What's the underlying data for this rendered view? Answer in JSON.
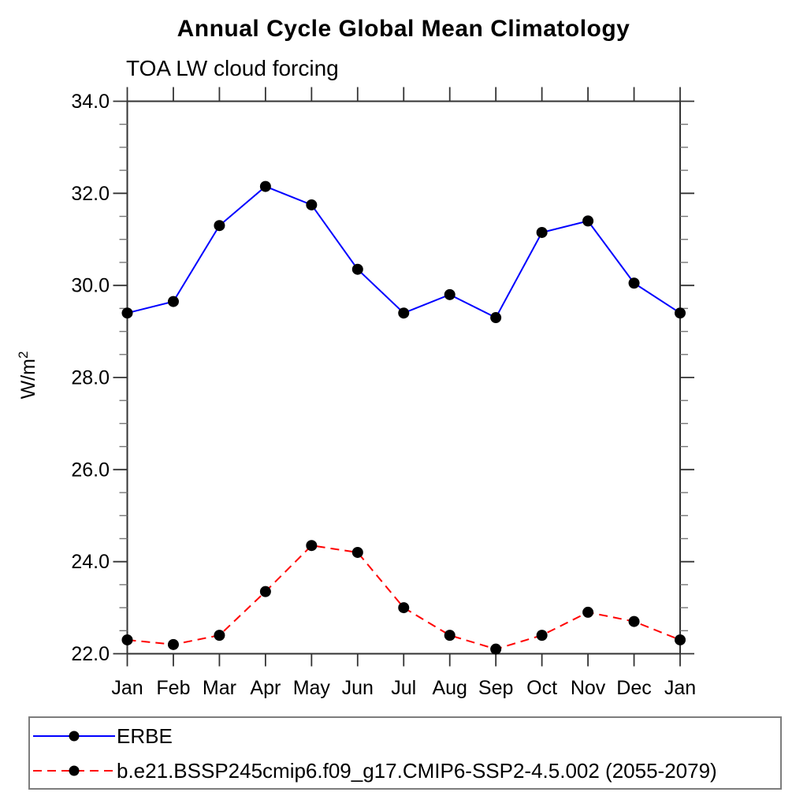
{
  "header": {
    "title": "Annual Cycle Global Mean Climatology",
    "subtitle": "TOA LW cloud forcing"
  },
  "chart_data": {
    "type": "line",
    "title": "Annual Cycle Global Mean Climatology",
    "subtitle": "TOA LW cloud forcing",
    "ylabel": "W/m",
    "ylabel_superscript": "2",
    "xlabel": "",
    "categories": [
      "Jan",
      "Feb",
      "Mar",
      "Apr",
      "May",
      "Jun",
      "Jul",
      "Aug",
      "Sep",
      "Oct",
      "Nov",
      "Dec",
      "Jan"
    ],
    "series": [
      {
        "name": "ERBE",
        "color": "#0000ff",
        "line_style": "solid",
        "marker": "filled-circle",
        "marker_color": "#000000",
        "values": [
          29.4,
          29.65,
          31.3,
          32.15,
          31.75,
          30.35,
          29.4,
          29.8,
          29.3,
          31.15,
          31.4,
          30.05,
          29.4
        ]
      },
      {
        "name": "b.e21.BSSP245cmip6.f09_g17.CMIP6-SSP2-4.5.002 (2055-2079)",
        "color": "#ff0000",
        "line_style": "dashed",
        "marker": "filled-circle",
        "marker_color": "#000000",
        "values": [
          22.3,
          22.2,
          22.4,
          23.35,
          24.35,
          24.2,
          23.0,
          22.4,
          22.1,
          22.4,
          22.9,
          22.7,
          22.3
        ]
      }
    ],
    "ylim": [
      22,
      34
    ],
    "ytick_step": 2,
    "yminor_step": 0.5,
    "ytick_labels": [
      "22.0",
      "24.0",
      "26.0",
      "28.0",
      "30.0",
      "32.0",
      "34.0"
    ],
    "grid": false,
    "legend_position": "bottom",
    "axis_color": "#333333",
    "minor_tick_color": "#777777",
    "tick_direction": "out"
  }
}
